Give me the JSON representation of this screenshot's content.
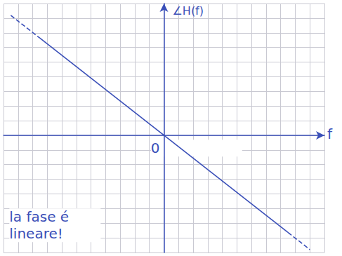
{
  "chart_data": {
    "type": "line",
    "xlabel": "f",
    "ylabel": "∠H(f)",
    "xlim": [
      -11,
      11
    ],
    "ylim": [
      -8,
      9
    ],
    "xticks": [
      -11,
      -10,
      -9,
      -8,
      -7,
      -6,
      -5,
      -4,
      -3,
      -2,
      -1,
      0,
      1,
      2,
      3,
      4,
      5,
      6,
      7,
      8,
      9,
      10,
      11
    ],
    "yticks": [
      -8,
      -7,
      -6,
      -5,
      -4,
      -3,
      -2,
      -1,
      0,
      1,
      2,
      3,
      4,
      5,
      6,
      7,
      8,
      9
    ],
    "grid": true,
    "tick_labels": false,
    "series": [
      {
        "color": "#3a4fb8",
        "line_style": "dashed",
        "x": [
          -10.5,
          -8.5
        ],
        "values": [
          8.19,
          6.63
        ]
      },
      {
        "color": "#3a4fb8",
        "line_style": "solid",
        "x": [
          -8.5,
          8.5
        ],
        "values": [
          6.63,
          -6.63
        ]
      },
      {
        "color": "#3a4fb8",
        "line_style": "dashed",
        "x": [
          8.5,
          10
        ],
        "values": [
          -6.63,
          -7.8
        ]
      }
    ],
    "annotations": [
      {
        "text": "0",
        "x": -0.9,
        "y": -0.3
      },
      {
        "text": "la fase é lineare!",
        "x": -10.6,
        "y": -5
      }
    ]
  }
}
